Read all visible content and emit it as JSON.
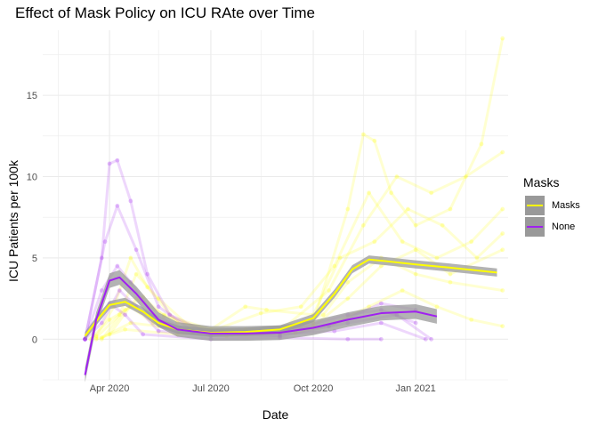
{
  "chart_data": {
    "type": "line",
    "title": "Effect of Mask Policy on ICU RAte over Time",
    "xlabel": "Date",
    "ylabel": "ICU Patients per 100k",
    "x_tick_labels": [
      "Apr 2020",
      "Jul 2020",
      "Oct 2020",
      "Jan 2021"
    ],
    "x_ticks": [
      "2020-04-01",
      "2020-07-01",
      "2020-10-01",
      "2021-01-01"
    ],
    "x_minor_ticks": [
      "2020-02-15",
      "2020-05-15",
      "2020-08-15",
      "2020-11-15",
      "2021-02-15"
    ],
    "xlim": [
      "2020-02-01",
      "2021-03-25"
    ],
    "y_ticks": [
      0,
      5,
      10,
      15
    ],
    "ylim": [
      -2.5,
      19
    ],
    "grid": true,
    "legend": {
      "title": "Masks",
      "position": "right",
      "entries": [
        "Masks",
        "None"
      ]
    },
    "colors": {
      "Masks": "#ffff00",
      "None": "#a020f0",
      "ribbon": "#999999",
      "grid": "#ebebeb"
    },
    "series": [
      {
        "name": "Masks",
        "smooth": [
          {
            "x": "2020-03-10",
            "y": 0.2
          },
          {
            "x": "2020-03-20",
            "y": 1.1
          },
          {
            "x": "2020-04-01",
            "y": 2.1
          },
          {
            "x": "2020-04-15",
            "y": 2.3
          },
          {
            "x": "2020-05-01",
            "y": 1.7
          },
          {
            "x": "2020-05-15",
            "y": 1.0
          },
          {
            "x": "2020-06-01",
            "y": 0.6
          },
          {
            "x": "2020-07-01",
            "y": 0.4
          },
          {
            "x": "2020-08-01",
            "y": 0.45
          },
          {
            "x": "2020-09-01",
            "y": 0.6
          },
          {
            "x": "2020-10-01",
            "y": 1.3
          },
          {
            "x": "2020-10-20",
            "y": 2.8
          },
          {
            "x": "2020-11-05",
            "y": 4.3
          },
          {
            "x": "2020-11-20",
            "y": 4.9
          },
          {
            "x": "2020-12-05",
            "y": 4.8
          },
          {
            "x": "2021-01-01",
            "y": 4.6
          },
          {
            "x": "2021-02-01",
            "y": 4.4
          },
          {
            "x": "2021-03-15",
            "y": 4.1
          }
        ],
        "ribbon_half_width": 0.25,
        "traces": [
          [
            {
              "x": "2020-03-20",
              "y": 0.2
            },
            {
              "x": "2020-04-05",
              "y": 2.0
            },
            {
              "x": "2020-04-20",
              "y": 5.0
            },
            {
              "x": "2020-05-05",
              "y": 3.2
            },
            {
              "x": "2020-06-01",
              "y": 1.0
            },
            {
              "x": "2020-08-01",
              "y": 0.3
            },
            {
              "x": "2020-10-01",
              "y": 1.0
            },
            {
              "x": "2020-11-01",
              "y": 8.0
            },
            {
              "x": "2020-11-15",
              "y": 12.6
            },
            {
              "x": "2020-11-25",
              "y": 12.2
            },
            {
              "x": "2020-12-10",
              "y": 9.0
            },
            {
              "x": "2021-01-01",
              "y": 7.0
            },
            {
              "x": "2021-02-01",
              "y": 8.0
            },
            {
              "x": "2021-03-01",
              "y": 12.0
            },
            {
              "x": "2021-03-20",
              "y": 18.5
            }
          ],
          [
            {
              "x": "2020-03-20",
              "y": 0.1
            },
            {
              "x": "2020-04-10",
              "y": 1.5
            },
            {
              "x": "2020-04-25",
              "y": 4.0
            },
            {
              "x": "2020-05-15",
              "y": 2.5
            },
            {
              "x": "2020-06-15",
              "y": 0.6
            },
            {
              "x": "2020-09-01",
              "y": 0.5
            },
            {
              "x": "2020-10-15",
              "y": 3.0
            },
            {
              "x": "2020-11-15",
              "y": 7.0
            },
            {
              "x": "2020-12-15",
              "y": 10.0
            },
            {
              "x": "2021-01-15",
              "y": 9.0
            },
            {
              "x": "2021-02-15",
              "y": 10.0
            },
            {
              "x": "2021-03-20",
              "y": 11.5
            }
          ],
          [
            {
              "x": "2020-03-25",
              "y": 0.0
            },
            {
              "x": "2020-04-15",
              "y": 1.8
            },
            {
              "x": "2020-05-01",
              "y": 2.6
            },
            {
              "x": "2020-05-20",
              "y": 1.4
            },
            {
              "x": "2020-07-01",
              "y": 0.5
            },
            {
              "x": "2020-08-15",
              "y": 1.6
            },
            {
              "x": "2020-09-20",
              "y": 2.0
            },
            {
              "x": "2020-10-20",
              "y": 4.5
            },
            {
              "x": "2020-11-20",
              "y": 9.0
            },
            {
              "x": "2020-12-20",
              "y": 6.0
            },
            {
              "x": "2021-01-20",
              "y": 5.0
            },
            {
              "x": "2021-02-20",
              "y": 6.0
            },
            {
              "x": "2021-03-20",
              "y": 8.0
            }
          ],
          [
            {
              "x": "2020-03-15",
              "y": 0.0
            },
            {
              "x": "2020-04-01",
              "y": 1.2
            },
            {
              "x": "2020-04-20",
              "y": 2.0
            },
            {
              "x": "2020-05-10",
              "y": 1.0
            },
            {
              "x": "2020-07-01",
              "y": 0.3
            },
            {
              "x": "2020-09-01",
              "y": 0.4
            },
            {
              "x": "2020-10-10",
              "y": 1.5
            },
            {
              "x": "2020-11-01",
              "y": 3.5
            },
            {
              "x": "2020-12-01",
              "y": 5.0
            },
            {
              "x": "2021-01-01",
              "y": 4.0
            },
            {
              "x": "2021-02-01",
              "y": 3.5
            },
            {
              "x": "2021-03-20",
              "y": 3.0
            }
          ],
          [
            {
              "x": "2020-03-25",
              "y": 0.1
            },
            {
              "x": "2020-04-20",
              "y": 1.0
            },
            {
              "x": "2020-05-15",
              "y": 0.8
            },
            {
              "x": "2020-07-15",
              "y": 0.2
            },
            {
              "x": "2020-09-15",
              "y": 0.4
            },
            {
              "x": "2020-10-20",
              "y": 1.0
            },
            {
              "x": "2020-11-20",
              "y": 2.0
            },
            {
              "x": "2020-12-20",
              "y": 3.0
            },
            {
              "x": "2021-01-20",
              "y": 2.0
            },
            {
              "x": "2021-02-20",
              "y": 1.2
            },
            {
              "x": "2021-03-20",
              "y": 0.8
            }
          ],
          [
            {
              "x": "2020-04-01",
              "y": 0.3
            },
            {
              "x": "2020-04-25",
              "y": 2.5
            },
            {
              "x": "2020-05-20",
              "y": 1.5
            },
            {
              "x": "2020-07-01",
              "y": 0.6
            },
            {
              "x": "2020-08-01",
              "y": 2.0
            },
            {
              "x": "2020-08-20",
              "y": 1.8
            },
            {
              "x": "2020-10-01",
              "y": 1.5
            },
            {
              "x": "2020-10-25",
              "y": 5.0
            },
            {
              "x": "2020-11-25",
              "y": 6.0
            },
            {
              "x": "2020-12-25",
              "y": 8.0
            },
            {
              "x": "2021-01-25",
              "y": 7.0
            },
            {
              "x": "2021-02-25",
              "y": 5.0
            },
            {
              "x": "2021-03-20",
              "y": 6.5
            }
          ],
          [
            {
              "x": "2020-03-20",
              "y": 0.0
            },
            {
              "x": "2020-04-15",
              "y": 0.6
            },
            {
              "x": "2020-06-01",
              "y": 0.3
            },
            {
              "x": "2020-08-01",
              "y": 0.6
            },
            {
              "x": "2020-10-01",
              "y": 0.8
            },
            {
              "x": "2020-11-01",
              "y": 2.5
            },
            {
              "x": "2020-12-01",
              "y": 4.5
            },
            {
              "x": "2021-01-01",
              "y": 5.5
            },
            {
              "x": "2021-02-01",
              "y": 4.0
            },
            {
              "x": "2021-03-20",
              "y": 5.5
            }
          ]
        ]
      },
      {
        "name": "None",
        "smooth": [
          {
            "x": "2020-03-10",
            "y": -2.2
          },
          {
            "x": "2020-03-20",
            "y": 1.2
          },
          {
            "x": "2020-04-01",
            "y": 3.6
          },
          {
            "x": "2020-04-10",
            "y": 3.8
          },
          {
            "x": "2020-04-25",
            "y": 2.8
          },
          {
            "x": "2020-05-15",
            "y": 1.2
          },
          {
            "x": "2020-06-01",
            "y": 0.6
          },
          {
            "x": "2020-07-01",
            "y": 0.35
          },
          {
            "x": "2020-08-01",
            "y": 0.35
          },
          {
            "x": "2020-09-01",
            "y": 0.4
          },
          {
            "x": "2020-10-01",
            "y": 0.7
          },
          {
            "x": "2020-11-01",
            "y": 1.2
          },
          {
            "x": "2020-12-01",
            "y": 1.6
          },
          {
            "x": "2021-01-01",
            "y": 1.7
          },
          {
            "x": "2021-01-20",
            "y": 1.4
          }
        ],
        "ribbon_half_width": 0.45,
        "traces": [
          [
            {
              "x": "2020-03-10",
              "y": 0.0
            },
            {
              "x": "2020-03-25",
              "y": 5.0
            },
            {
              "x": "2020-04-01",
              "y": 10.8
            },
            {
              "x": "2020-04-08",
              "y": 11.0
            },
            {
              "x": "2020-04-20",
              "y": 8.5
            },
            {
              "x": "2020-05-05",
              "y": 4.0
            },
            {
              "x": "2020-05-25",
              "y": 1.5
            },
            {
              "x": "2020-07-01",
              "y": 0.3
            },
            {
              "x": "2020-09-01",
              "y": 0.2
            },
            {
              "x": "2020-11-01",
              "y": 1.0
            },
            {
              "x": "2020-12-15",
              "y": 1.5
            },
            {
              "x": "2021-01-15",
              "y": 0.0
            }
          ],
          [
            {
              "x": "2020-03-10",
              "y": 0.0
            },
            {
              "x": "2020-03-28",
              "y": 6.0
            },
            {
              "x": "2020-04-08",
              "y": 8.2
            },
            {
              "x": "2020-04-25",
              "y": 5.5
            },
            {
              "x": "2020-05-15",
              "y": 2.0
            },
            {
              "x": "2020-06-15",
              "y": 0.5
            },
            {
              "x": "2020-09-01",
              "y": 0.4
            },
            {
              "x": "2020-11-01",
              "y": 1.5
            },
            {
              "x": "2020-12-01",
              "y": 1.8
            },
            {
              "x": "2021-01-01",
              "y": 1.0
            }
          ],
          [
            {
              "x": "2020-03-10",
              "y": 0.0
            },
            {
              "x": "2020-03-25",
              "y": 3.0
            },
            {
              "x": "2020-04-08",
              "y": 4.5
            },
            {
              "x": "2020-04-20",
              "y": 3.5
            },
            {
              "x": "2020-05-10",
              "y": 1.5
            },
            {
              "x": "2020-06-15",
              "y": 0.4
            },
            {
              "x": "2020-08-15",
              "y": 0.5
            },
            {
              "x": "2020-10-15",
              "y": 0.8
            },
            {
              "x": "2020-12-01",
              "y": 2.2
            },
            {
              "x": "2021-01-01",
              "y": 1.8
            }
          ],
          [
            {
              "x": "2020-03-10",
              "y": 0.0
            },
            {
              "x": "2020-03-20",
              "y": 1.2
            },
            {
              "x": "2020-04-01",
              "y": 2.2
            },
            {
              "x": "2020-04-15",
              "y": 1.5
            },
            {
              "x": "2020-05-01",
              "y": 0.3
            },
            {
              "x": "2020-07-01",
              "y": 0.0
            },
            {
              "x": "2020-09-01",
              "y": 0.1
            },
            {
              "x": "2020-11-01",
              "y": 0.0
            },
            {
              "x": "2020-12-01",
              "y": 0.0
            }
          ],
          [
            {
              "x": "2020-03-10",
              "y": 0.0
            },
            {
              "x": "2020-03-25",
              "y": 1.0
            },
            {
              "x": "2020-04-10",
              "y": 3.0
            },
            {
              "x": "2020-04-25",
              "y": 2.0
            },
            {
              "x": "2020-05-15",
              "y": 0.5
            },
            {
              "x": "2020-07-01",
              "y": 0.2
            },
            {
              "x": "2020-09-01",
              "y": 0.3
            },
            {
              "x": "2020-10-20",
              "y": 0.5
            },
            {
              "x": "2020-12-01",
              "y": 1.0
            },
            {
              "x": "2021-01-10",
              "y": 0.0
            }
          ]
        ]
      }
    ]
  }
}
